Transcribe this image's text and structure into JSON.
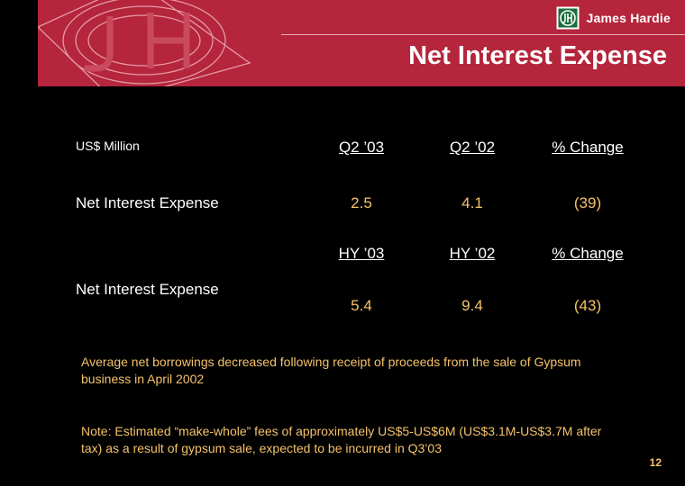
{
  "header": {
    "brand": "James Hardie",
    "logo_icon": "jh-monogram-icon",
    "title": "Net Interest Expense",
    "accent_color": "#b5253c"
  },
  "table": {
    "units_label": "US$ Million",
    "quarter": {
      "headers": [
        "Q2 ’03",
        "Q2 ’02",
        "% Change"
      ],
      "row_label": "Net Interest Expense",
      "values": [
        "2.5",
        "4.1",
        "(39)"
      ]
    },
    "half_year": {
      "headers": [
        "HY ’03",
        "HY ’02",
        "% Change"
      ],
      "row_label": "Net Interest Expense",
      "values": [
        "5.4",
        "9.4",
        "(43)"
      ]
    }
  },
  "notes": {
    "commentary": "Average net borrowings decreased following receipt of proceeds from the sale of Gypsum business in April 2002",
    "footnote": "Note:  Estimated “make-whole” fees of approximately US$5-US$6M (US$3.1M-US$3.7M after tax) as a result of gypsum sale, expected to be incurred in Q3’03"
  },
  "page_number": "12"
}
